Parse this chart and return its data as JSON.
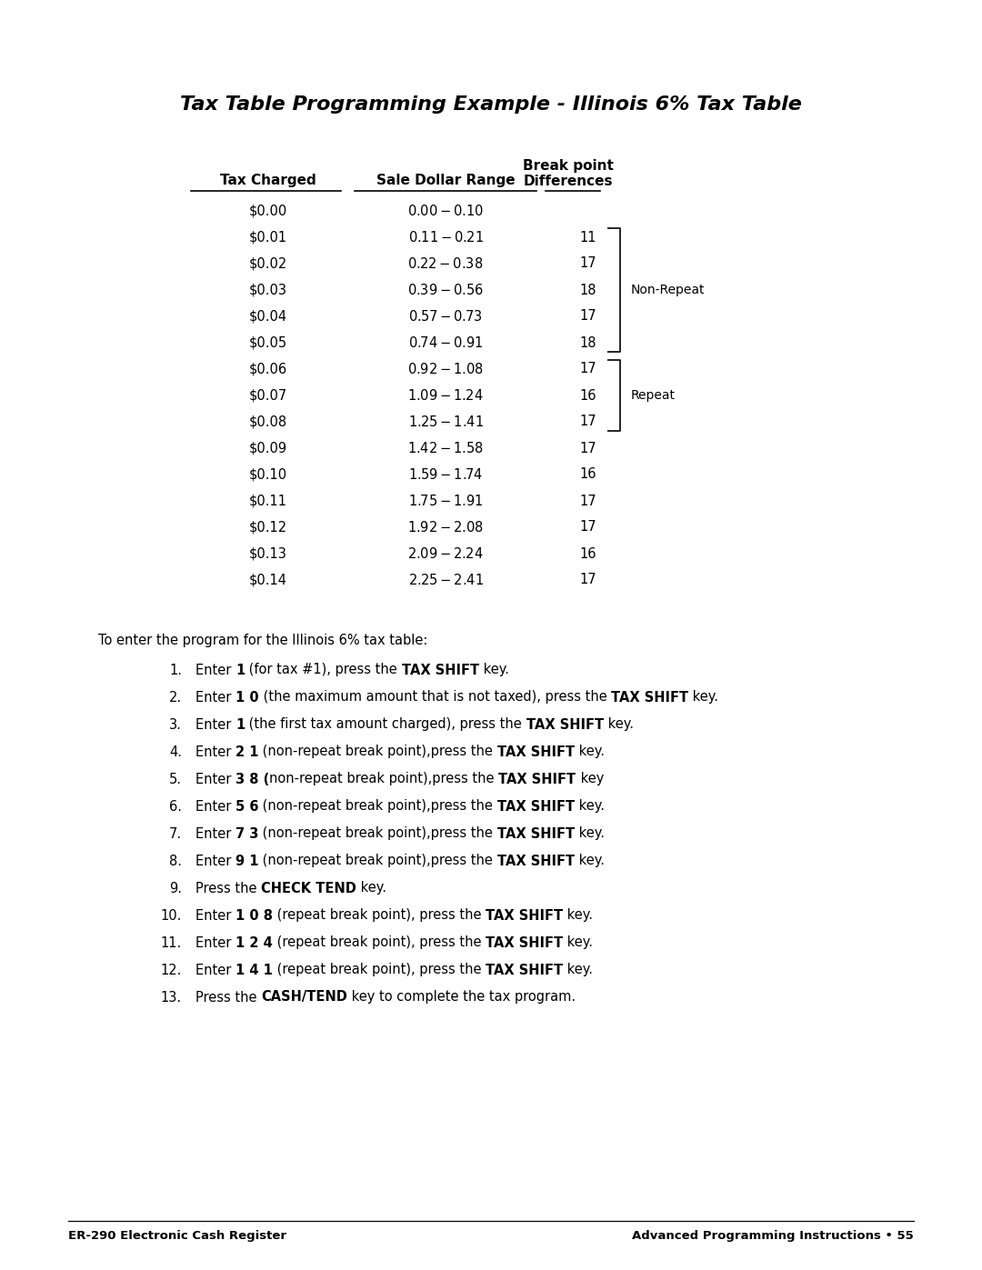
{
  "title": "Tax Table Programming Example - Illinois 6% Tax Table",
  "table_rows": [
    [
      "$0.00",
      "$0.00 - $0.10",
      ""
    ],
    [
      "$0.01",
      "$0.11 - $0.21",
      "11"
    ],
    [
      "$0.02",
      "$0.22 - $0.38",
      "17"
    ],
    [
      "$0.03",
      "$0.39 - $0.56",
      "18"
    ],
    [
      "$0.04",
      "$0.57 - $0.73",
      "17"
    ],
    [
      "$0.05",
      "$0.74 - $0.91",
      "18"
    ],
    [
      "$0.06",
      "$0.92 - $1.08",
      "17"
    ],
    [
      "$0.07",
      "$1.09 - $1.24",
      "16"
    ],
    [
      "$0.08",
      "$1.25 - $1.41",
      "17"
    ],
    [
      "$0.09",
      "$1.42 - $1.58",
      "17"
    ],
    [
      "$0.10",
      "$1.59 - $1.74",
      "16"
    ],
    [
      "$0.11",
      "$1.75 - $1.91",
      "17"
    ],
    [
      "$0.12",
      "$1.92 - $2.08",
      "17"
    ],
    [
      "$0.13",
      "$2.09 - $2.24",
      "16"
    ],
    [
      "$0.14",
      "$2.25 - $2.41",
      "17"
    ]
  ],
  "non_repeat_label": "Non-Repeat",
  "repeat_label": "Repeat",
  "intro_text": "To enter the program for the Illinois 6% tax table:",
  "steps": [
    [
      [
        "Enter ",
        false
      ],
      [
        "1",
        true
      ],
      [
        " (for tax #1), press the ",
        false
      ],
      [
        "TAX SHIFT",
        true
      ],
      [
        " key.",
        false
      ]
    ],
    [
      [
        "Enter ",
        false
      ],
      [
        "1 0",
        true
      ],
      [
        " (the maximum amount that is not taxed), press the ",
        false
      ],
      [
        "TAX SHIFT",
        true
      ],
      [
        " key.",
        false
      ]
    ],
    [
      [
        "Enter ",
        false
      ],
      [
        "1",
        true
      ],
      [
        " (the first tax amount charged), press the ",
        false
      ],
      [
        "TAX SHIFT",
        true
      ],
      [
        " key.",
        false
      ]
    ],
    [
      [
        "Enter ",
        false
      ],
      [
        "2 1",
        true
      ],
      [
        " (non-repeat break point),press the ",
        false
      ],
      [
        "TAX SHIFT",
        true
      ],
      [
        " key.",
        false
      ]
    ],
    [
      [
        "Enter ",
        false
      ],
      [
        "3 8 (",
        true
      ],
      [
        "non-repeat break point),press the ",
        false
      ],
      [
        "TAX SHIFT",
        true
      ],
      [
        " key",
        false
      ]
    ],
    [
      [
        "Enter ",
        false
      ],
      [
        "5 6",
        true
      ],
      [
        " (non-repeat break point),press the ",
        false
      ],
      [
        "TAX SHIFT",
        true
      ],
      [
        " key.",
        false
      ]
    ],
    [
      [
        "Enter ",
        false
      ],
      [
        "7 3",
        true
      ],
      [
        " (non-repeat break point),press the ",
        false
      ],
      [
        "TAX SHIFT",
        true
      ],
      [
        " key.",
        false
      ]
    ],
    [
      [
        "Enter ",
        false
      ],
      [
        "9 1",
        true
      ],
      [
        " (non-repeat break point),press the ",
        false
      ],
      [
        "TAX SHIFT",
        true
      ],
      [
        " key.",
        false
      ]
    ],
    [
      [
        "Press the ",
        false
      ],
      [
        "CHECK TEND",
        true
      ],
      [
        " key.",
        false
      ]
    ],
    [
      [
        "Enter ",
        false
      ],
      [
        "1 0 8",
        true
      ],
      [
        " (repeat break point), press the ",
        false
      ],
      [
        "TAX SHIFT",
        true
      ],
      [
        " key.",
        false
      ]
    ],
    [
      [
        "Enter ",
        false
      ],
      [
        "1 2 4",
        true
      ],
      [
        " (repeat break point), press the ",
        false
      ],
      [
        "TAX SHIFT",
        true
      ],
      [
        " key.",
        false
      ]
    ],
    [
      [
        "Enter ",
        false
      ],
      [
        "1 4 1",
        true
      ],
      [
        " (repeat break point), press the ",
        false
      ],
      [
        "TAX SHIFT",
        true
      ],
      [
        " key.",
        false
      ]
    ],
    [
      [
        "Press the ",
        false
      ],
      [
        "CASH/TEND",
        true
      ],
      [
        " key to complete the tax program.",
        false
      ]
    ]
  ],
  "footer_left": "ER-290 Electronic Cash Register",
  "footer_right": "Advanced Programming Instructions • 55",
  "bg_color": "#ffffff",
  "text_color": "#000000"
}
